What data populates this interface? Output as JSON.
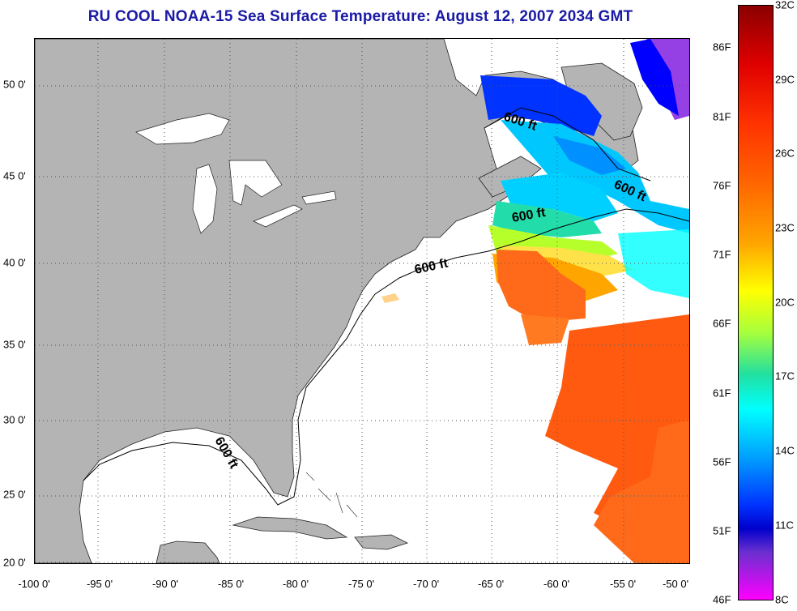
{
  "title": "RU COOL  NOAA-15  Sea Surface Temperature:  August 12, 2007 2034 GMT",
  "x_axis": {
    "ticks": [
      "-100 0'",
      "-95 0'",
      "-90 0'",
      "-85 0'",
      "-80 0'",
      "-75 0'",
      "-70 0'",
      "-65 0'",
      "-60 0'",
      "-55 0'",
      "-50 0'"
    ]
  },
  "y_axis": {
    "ticks": [
      "20 0'",
      "25 0'",
      "30 0'",
      "35 0'",
      "40 0'",
      "45 0'",
      "50 0'"
    ]
  },
  "contour_labels": [
    "600 ft",
    "600 ft",
    "600 ft",
    "600 ft",
    "600 ft"
  ],
  "colorbar": {
    "fahrenheit": [
      "86F",
      "81F",
      "76F",
      "71F",
      "66F",
      "61F",
      "56F",
      "51F",
      "46F"
    ],
    "celsius": [
      "32C",
      "29C",
      "26C",
      "23C",
      "20C",
      "17C",
      "14C",
      "11C",
      "8C"
    ]
  },
  "colors": {
    "land": "#b4b4b4",
    "ocean_missing": "#ffffff",
    "title": "#1a1aa6"
  }
}
